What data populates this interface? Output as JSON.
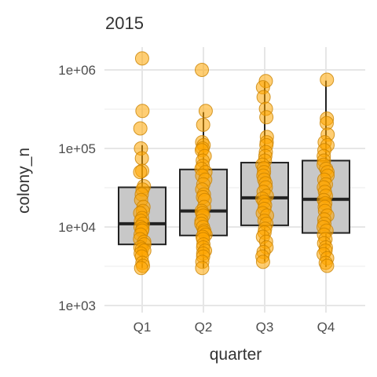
{
  "chart_data": {
    "type": "boxplot",
    "title": "2015",
    "xlabel": "quarter",
    "ylabel": "colony_n",
    "y_scale": "log10",
    "ylim": [
      1000,
      1500000
    ],
    "y_ticks": [
      1000,
      10000,
      100000,
      1000000
    ],
    "y_tick_labels": [
      "1e+03",
      "1e+04",
      "1e+05",
      "1e+06"
    ],
    "categories": [
      "Q1",
      "Q2",
      "Q3",
      "Q4"
    ],
    "grid": true,
    "legend": "none",
    "colors": {
      "box_fill": "#c8c8c8",
      "box_stroke": "#222222",
      "point": "#ffa500",
      "grid": "#e6e6e6"
    },
    "boxes": [
      {
        "category": "Q1",
        "q1": 6000,
        "median": 11000,
        "q3": 32000,
        "whisker_low": 3000,
        "whisker_high": 110000
      },
      {
        "category": "Q2",
        "q1": 7800,
        "median": 16000,
        "q3": 54000,
        "whisker_low": 3000,
        "whisker_high": 290000
      },
      {
        "category": "Q3",
        "q1": 10500,
        "median": 23500,
        "q3": 66000,
        "whisker_low": 3600,
        "whisker_high": 710000
      },
      {
        "category": "Q4",
        "q1": 8400,
        "median": 22500,
        "q3": 70000,
        "whisker_low": 3100,
        "whisker_high": 730000
      }
    ],
    "points": [
      {
        "category": "Q1",
        "values": [
          1400000,
          300000,
          180000,
          100000,
          75000,
          52000,
          50000,
          33000,
          30000,
          26000,
          22000,
          18000,
          16000,
          15000,
          13000,
          12000,
          11000,
          10000,
          9500,
          9000,
          8000,
          7000,
          6500,
          6000,
          5500,
          5200,
          5000,
          4600,
          4200,
          3500,
          3200,
          3000
        ]
      },
      {
        "category": "Q2",
        "values": [
          1000000,
          300000,
          200000,
          120000,
          110000,
          100000,
          95000,
          80000,
          70000,
          60000,
          55000,
          50000,
          45000,
          40000,
          35000,
          30000,
          26000,
          24000,
          22000,
          18000,
          16000,
          15000,
          14000,
          12000,
          11000,
          10000,
          9000,
          8500,
          8000,
          7500,
          7000,
          6000,
          5500,
          5000,
          4600,
          4200,
          3600,
          3000
        ]
      },
      {
        "category": "Q3",
        "values": [
          720000,
          600000,
          450000,
          320000,
          250000,
          140000,
          120000,
          110000,
          90000,
          80000,
          70000,
          62000,
          56000,
          50000,
          45000,
          40000,
          36000,
          32000,
          28000,
          25000,
          23000,
          21000,
          19000,
          17000,
          15000,
          14000,
          12000,
          11000,
          9500,
          8500,
          7500,
          6500,
          5500,
          4800,
          4200,
          3600
        ]
      },
      {
        "category": "Q4",
        "values": [
          750000,
          240000,
          210000,
          150000,
          120000,
          110000,
          95000,
          80000,
          70000,
          62000,
          55000,
          50000,
          45000,
          40000,
          35000,
          32000,
          28000,
          25000,
          22000,
          20000,
          18000,
          16000,
          14000,
          12500,
          11000,
          10000,
          9000,
          8000,
          7000,
          6200,
          5500,
          5000,
          4500,
          4000,
          3500,
          3200
        ]
      }
    ]
  }
}
